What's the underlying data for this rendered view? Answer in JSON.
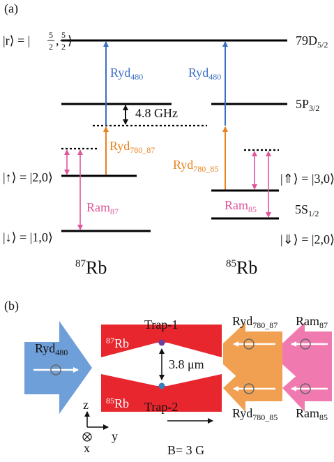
{
  "panel_a": {
    "label": "(a)",
    "ket_r": {
      "prefix": "|r⟩ = |",
      "frac1": [
        "5",
        "2"
      ],
      "comma": ",",
      "frac2": [
        "5",
        "2"
      ],
      "suffix": "⟩"
    },
    "level_79d": {
      "main": "79D",
      "sub": "5/2"
    },
    "level_5p": {
      "main": "5P",
      "sub": "3/2"
    },
    "level_5s": {
      "main": "5S",
      "sub": "1/2"
    },
    "splitting": "4.8 GHz",
    "beams": {
      "ryd480_left": {
        "main": "Ryd",
        "sub": "480"
      },
      "ryd480_right": {
        "main": "Ryd",
        "sub": "480"
      },
      "ryd780_87": {
        "main": "Ryd",
        "sub": "780_87"
      },
      "ryd780_85": {
        "main": "Ryd",
        "sub": "780_85"
      },
      "ram87": {
        "main": "Ram",
        "sub": "87"
      },
      "ram85": {
        "main": "Ram",
        "sub": "85"
      }
    },
    "kets": {
      "up": "|↑⟩ = |2,0⟩",
      "down": "|↓⟩ = |1,0⟩",
      "up85": "|⇑⟩ = |3,0⟩",
      "down85": "|⇓⟩ = |2,0⟩"
    },
    "isotopes": [
      {
        "mass": "87",
        "symbol": "Rb"
      },
      {
        "mass": "85",
        "symbol": "Rb"
      }
    ]
  },
  "panel_b": {
    "label": "(b)",
    "ryd480": {
      "main": "Ryd",
      "sub": "480"
    },
    "trap1": "Trap-1",
    "trap2": "Trap-2",
    "atom1": {
      "mass": "87",
      "symbol": "Rb"
    },
    "atom2": {
      "mass": "85",
      "symbol": "Rb"
    },
    "spacing": "3.8 μm",
    "ryd780_87": {
      "main": "Ryd",
      "sub": "780_87"
    },
    "ryd780_85": {
      "main": "Ryd",
      "sub": "780_85"
    },
    "ram87": {
      "main": "Ram",
      "sub": "87"
    },
    "ram85": {
      "main": "Ram",
      "sub": "85"
    },
    "axes": {
      "z": "z",
      "y": "y",
      "x": "x"
    },
    "field": "B= 3 G"
  }
}
